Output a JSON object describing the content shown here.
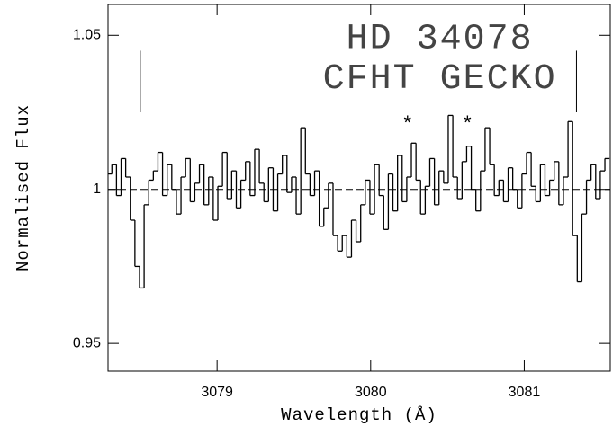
{
  "chart_data": {
    "type": "step",
    "xlabel": "Wavelength (Å)",
    "ylabel": "Normalised Flux",
    "annotations": [
      {
        "text": "HD 34078",
        "x": 3080.45,
        "y": 1.049
      },
      {
        "text": "CFHT GECKO",
        "x": 3080.45,
        "y": 1.036
      },
      {
        "text": "*",
        "x": 3080.24,
        "y": 1.021
      },
      {
        "text": "*",
        "x": 3080.63,
        "y": 1.021
      }
    ],
    "markers": [
      3078.5,
      3081.34
    ],
    "marker_span": [
      1.025,
      1.045
    ],
    "reference_line": 1,
    "color": "#000000",
    "xlim": [
      3078.29,
      3081.56
    ],
    "ylim": [
      0.941,
      1.06
    ],
    "xticks": [
      3079,
      3080,
      3081
    ],
    "yticks": [
      0.95,
      1,
      1.05
    ],
    "x": [
      3078.3,
      3078.33,
      3078.36,
      3078.39,
      3078.42,
      3078.45,
      3078.48,
      3078.51,
      3078.54,
      3078.57,
      3078.6,
      3078.63,
      3078.66,
      3078.69,
      3078.72,
      3078.75,
      3078.78,
      3078.81,
      3078.84,
      3078.87,
      3078.9,
      3078.93,
      3078.96,
      3078.99,
      3079.02,
      3079.05,
      3079.08,
      3079.11,
      3079.14,
      3079.17,
      3079.2,
      3079.23,
      3079.26,
      3079.29,
      3079.32,
      3079.35,
      3079.38,
      3079.41,
      3079.44,
      3079.47,
      3079.5,
      3079.53,
      3079.56,
      3079.59,
      3079.62,
      3079.65,
      3079.68,
      3079.71,
      3079.74,
      3079.77,
      3079.8,
      3079.83,
      3079.86,
      3079.89,
      3079.92,
      3079.95,
      3079.98,
      3080.01,
      3080.04,
      3080.07,
      3080.1,
      3080.13,
      3080.16,
      3080.19,
      3080.22,
      3080.25,
      3080.28,
      3080.31,
      3080.34,
      3080.37,
      3080.4,
      3080.43,
      3080.46,
      3080.49,
      3080.52,
      3080.55,
      3080.58,
      3080.61,
      3080.64,
      3080.67,
      3080.7,
      3080.73,
      3080.76,
      3080.79,
      3080.82,
      3080.85,
      3080.88,
      3080.91,
      3080.94,
      3080.97,
      3081.0,
      3081.03,
      3081.06,
      3081.09,
      3081.12,
      3081.15,
      3081.18,
      3081.21,
      3081.24,
      3081.27,
      3081.3,
      3081.33,
      3081.36,
      3081.39,
      3081.42,
      3081.45,
      3081.48,
      3081.51,
      3081.54
    ],
    "values": [
      1.005,
      1.008,
      0.998,
      1.01,
      1.004,
      0.99,
      0.975,
      0.968,
      0.995,
      1.003,
      1.006,
      1.012,
      0.998,
      1.008,
      1.0,
      0.992,
      1.004,
      1.01,
      0.996,
      1.002,
      1.008,
      0.995,
      1.004,
      0.99,
      1.001,
      1.012,
      0.997,
      1.006,
      0.994,
      1.003,
      1.009,
      0.998,
      1.013,
      1.002,
      0.996,
      1.007,
      0.993,
      1.005,
      1.011,
      0.999,
      1.004,
      0.992,
      1.02,
      1.005,
      0.998,
      1.006,
      0.988,
      0.994,
      1.002,
      0.985,
      0.98,
      0.985,
      0.978,
      0.99,
      0.983,
      0.995,
      1.003,
      0.992,
      1.008,
      0.998,
      0.987,
      1.005,
      0.993,
      1.011,
      0.996,
      1.004,
      1.015,
      1.003,
      0.992,
      1.001,
      1.01,
      0.995,
      1.006,
      1.002,
      1.024,
      1.004,
      0.997,
      1.009,
      1.014,
      1.0,
      0.993,
      1.006,
      1.02,
      1.008,
      0.998,
      1.003,
      0.996,
      1.007,
      1.0,
      0.994,
      1.005,
      1.012,
      1.001,
      0.996,
      1.008,
      0.998,
      1.003,
      1.009,
      0.995,
      1.004,
      1.022,
      0.985,
      0.97,
      0.992,
      1.003,
      1.008,
      0.997,
      1.006,
      1.01
    ]
  }
}
